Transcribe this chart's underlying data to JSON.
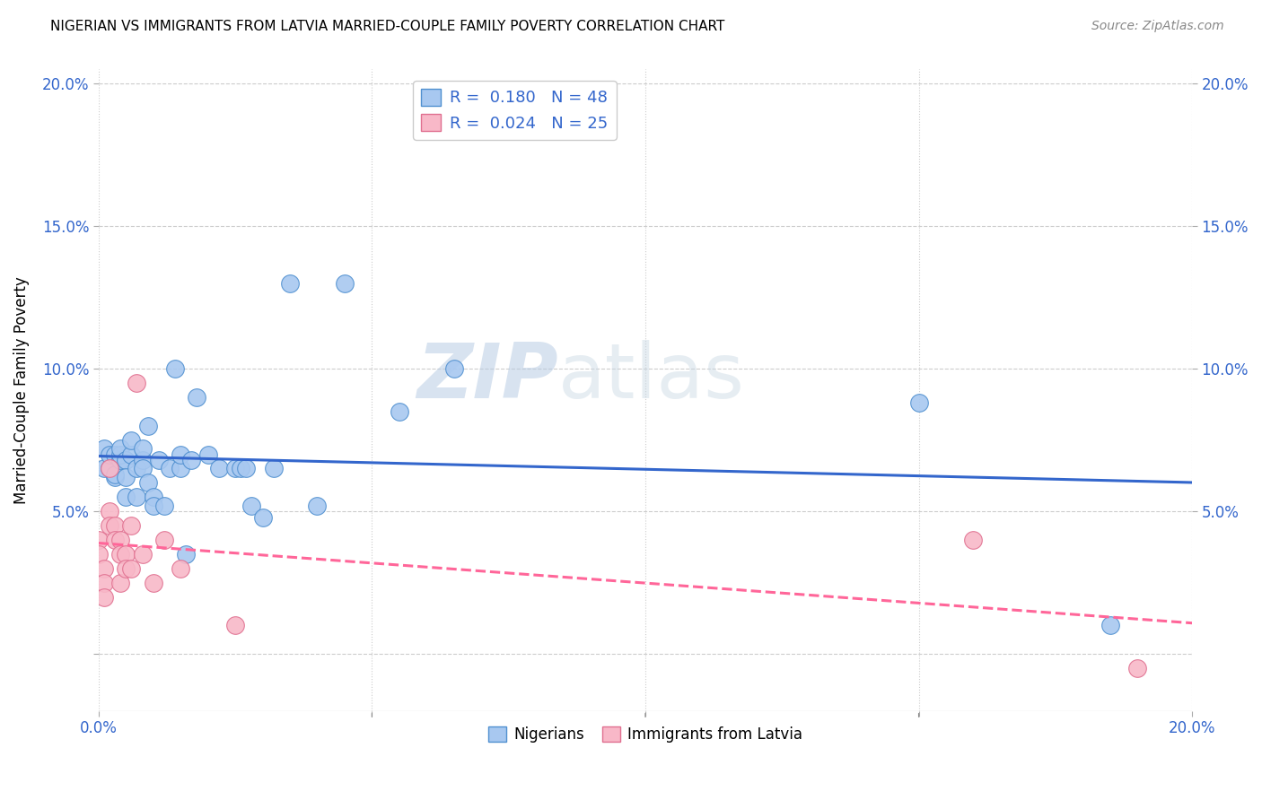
{
  "title": "NIGERIAN VS IMMIGRANTS FROM LATVIA MARRIED-COUPLE FAMILY POVERTY CORRELATION CHART",
  "source": "Source: ZipAtlas.com",
  "ylabel": "Married-Couple Family Poverty",
  "xlim": [
    0.0,
    0.2
  ],
  "ylim": [
    -0.02,
    0.205
  ],
  "xtick_vals": [
    0.0,
    0.05,
    0.1,
    0.15,
    0.2
  ],
  "xtick_labels": [
    "0.0%",
    "",
    "",
    "",
    "20.0%"
  ],
  "ytick_vals": [
    0.0,
    0.05,
    0.1,
    0.15,
    0.2
  ],
  "ytick_labels": [
    "",
    "5.0%",
    "10.0%",
    "15.0%",
    "20.0%"
  ],
  "right_ytick_vals": [
    0.05,
    0.1,
    0.15,
    0.2
  ],
  "right_ytick_labels": [
    "5.0%",
    "10.0%",
    "15.0%",
    "20.0%"
  ],
  "nigerian_color": "#A8C8F0",
  "nigerian_edge": "#5090D0",
  "latvian_color": "#F8B8C8",
  "latvian_edge": "#E07090",
  "trendline_nigerian_color": "#3366CC",
  "trendline_latvian_color": "#FF6699",
  "watermark_zip": "ZIP",
  "watermark_atlas": "atlas",
  "legend_line1": "R =  0.180   N = 48",
  "legend_line2": "R =  0.024   N = 25",
  "bottom_legend1": "Nigerians",
  "bottom_legend2": "Immigrants from Latvia",
  "nigerian_x": [
    0.001,
    0.001,
    0.002,
    0.002,
    0.003,
    0.003,
    0.003,
    0.004,
    0.004,
    0.004,
    0.005,
    0.005,
    0.005,
    0.006,
    0.006,
    0.007,
    0.007,
    0.008,
    0.008,
    0.008,
    0.009,
    0.009,
    0.01,
    0.01,
    0.011,
    0.012,
    0.013,
    0.014,
    0.015,
    0.015,
    0.016,
    0.017,
    0.018,
    0.02,
    0.022,
    0.025,
    0.026,
    0.027,
    0.028,
    0.03,
    0.032,
    0.035,
    0.04,
    0.045,
    0.055,
    0.065,
    0.15,
    0.185
  ],
  "nigerian_y": [
    0.065,
    0.072,
    0.065,
    0.07,
    0.062,
    0.063,
    0.07,
    0.068,
    0.07,
    0.072,
    0.068,
    0.062,
    0.055,
    0.07,
    0.075,
    0.065,
    0.055,
    0.068,
    0.065,
    0.072,
    0.08,
    0.06,
    0.055,
    0.052,
    0.068,
    0.052,
    0.065,
    0.1,
    0.065,
    0.07,
    0.035,
    0.068,
    0.09,
    0.07,
    0.065,
    0.065,
    0.065,
    0.065,
    0.052,
    0.048,
    0.065,
    0.13,
    0.052,
    0.13,
    0.085,
    0.1,
    0.088,
    0.01
  ],
  "latvian_x": [
    0.0,
    0.0,
    0.001,
    0.001,
    0.001,
    0.002,
    0.002,
    0.002,
    0.003,
    0.003,
    0.004,
    0.004,
    0.004,
    0.005,
    0.005,
    0.006,
    0.006,
    0.007,
    0.008,
    0.01,
    0.012,
    0.015,
    0.025,
    0.16,
    0.19
  ],
  "latvian_y": [
    0.04,
    0.035,
    0.03,
    0.025,
    0.02,
    0.065,
    0.05,
    0.045,
    0.045,
    0.04,
    0.04,
    0.035,
    0.025,
    0.035,
    0.03,
    0.03,
    0.045,
    0.095,
    0.035,
    0.025,
    0.04,
    0.03,
    0.01,
    0.04,
    -0.005
  ],
  "background_color": "#FFFFFF",
  "grid_color": "#CCCCCC"
}
